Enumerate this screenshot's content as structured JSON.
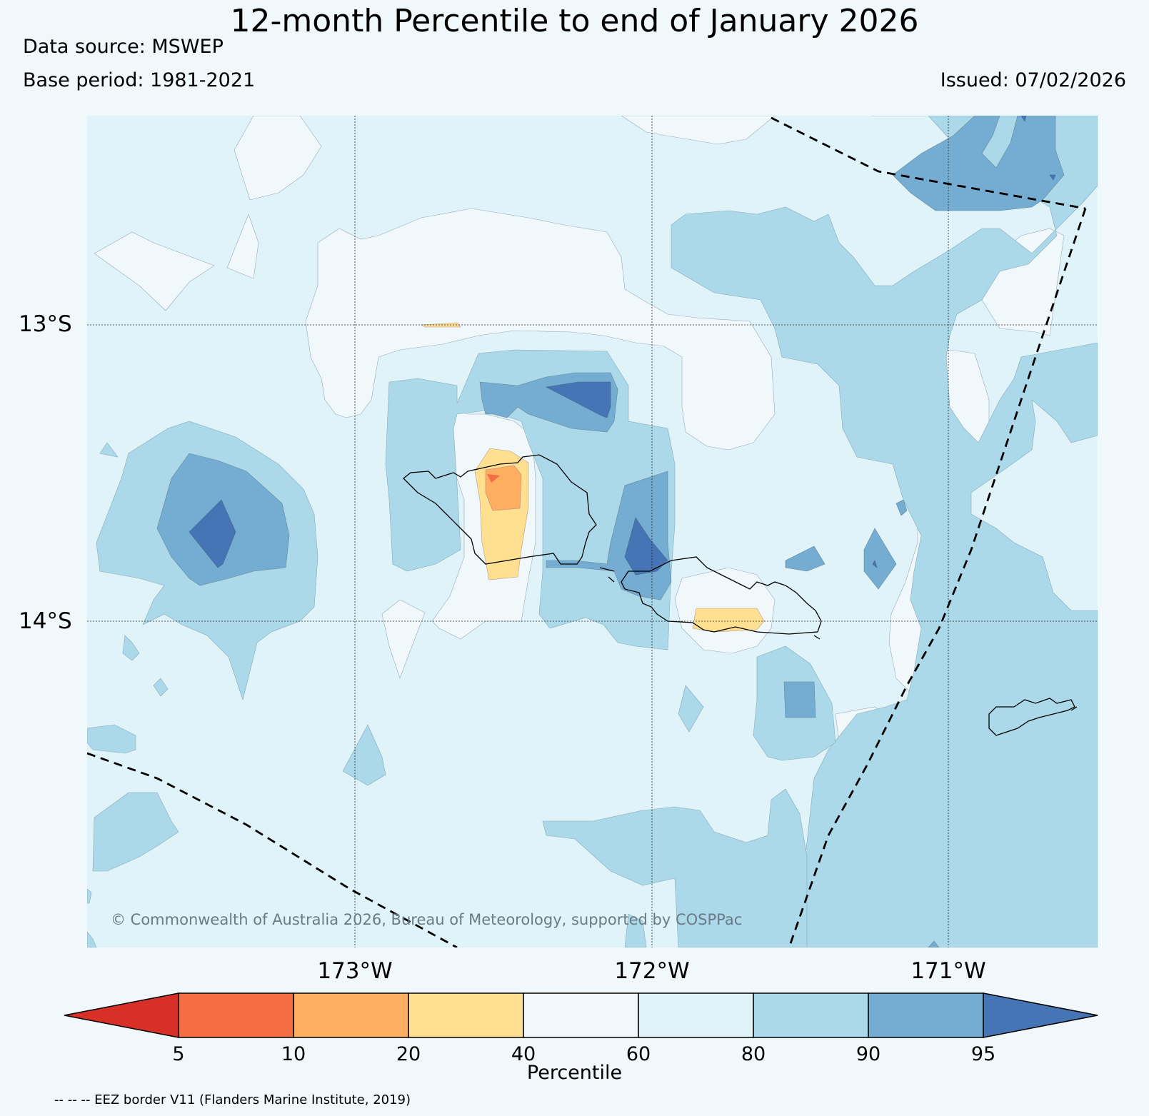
{
  "title": "12-month Percentile to end of January 2026",
  "data_source": "Data source: MSWEP",
  "base_period": "Base period: 1981-2021",
  "issued": "Issued: 07/02/2026",
  "map": {
    "lat_labels": [
      "13°S",
      "14°S"
    ],
    "lon_labels": [
      "173°W",
      "172°W",
      "171°W"
    ],
    "copyright": "© Commonwealth of Australia 2026, Bureau of Meteorology, supported by COSPPac",
    "eez_note": "-- -- -- EEZ border V11 (Flanders Marine Institute, 2019)"
  },
  "colorbar": {
    "label": "Percentile",
    "ticks": [
      "5",
      "10",
      "20",
      "40",
      "60",
      "80",
      "90",
      "95"
    ],
    "colors": {
      "below5": "#d73027",
      "5-10": "#f46d43",
      "10-20": "#fdae61",
      "20-40": "#fee090",
      "40-60": "#f0f8fb",
      "60-80": "#e0f3f8",
      "80-90": "#abd9e9",
      "90-95": "#74add1",
      "above95": "#4575b4"
    }
  }
}
